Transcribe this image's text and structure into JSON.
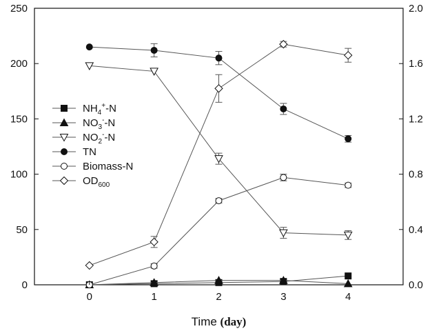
{
  "chart_data": {
    "type": "line",
    "x_axis": {
      "label_main": "Time ",
      "label_unit": "(day)",
      "range": [
        -0.85,
        4.85
      ],
      "ticks": [
        0,
        1,
        2,
        3,
        4
      ],
      "tick_labels": [
        "0",
        "1",
        "2",
        "3",
        "4"
      ]
    },
    "y_left": {
      "range": [
        0,
        250
      ],
      "ticks": [
        0,
        50,
        100,
        150,
        200,
        250
      ],
      "tick_labels": [
        "0",
        "50",
        "100",
        "150",
        "200",
        "250"
      ]
    },
    "y_right": {
      "range": [
        0,
        2.0
      ],
      "ticks": [
        0,
        0.4,
        0.8,
        1.2,
        1.6,
        2.0
      ],
      "tick_labels": [
        "0.0",
        "0.4",
        "0.8",
        "1.2",
        "1.6",
        "2.0"
      ]
    },
    "x": [
      0,
      1,
      2,
      3,
      4
    ],
    "series": [
      {
        "name": "NH4+-N",
        "label_parts": [
          "NH",
          "4",
          "+",
          "-N"
        ],
        "marker": "square",
        "filled": true,
        "axis": "left",
        "values": [
          0,
          1,
          2,
          3,
          8
        ],
        "errors": [
          0,
          0,
          0,
          0,
          0
        ]
      },
      {
        "name": "NO3--N",
        "label_parts": [
          "NO",
          "3",
          "-",
          "-N"
        ],
        "marker": "triangle-up",
        "filled": true,
        "axis": "left",
        "values": [
          0,
          2,
          4,
          4,
          1
        ],
        "errors": [
          0,
          0,
          0,
          0,
          0
        ]
      },
      {
        "name": "NO2--N",
        "label_parts": [
          "NO",
          "2",
          "-",
          "-N"
        ],
        "marker": "triangle-down",
        "filled": false,
        "axis": "left",
        "values": [
          198,
          193,
          114,
          47,
          45
        ],
        "errors": [
          0,
          0,
          5,
          5,
          4
        ]
      },
      {
        "name": "TN",
        "label_parts": [
          "TN",
          "",
          "",
          ""
        ],
        "marker": "circle",
        "filled": true,
        "axis": "left",
        "values": [
          215,
          212,
          205,
          159,
          132
        ],
        "errors": [
          0,
          6,
          6,
          5,
          3
        ]
      },
      {
        "name": "Biomass-N",
        "label_parts": [
          "Biomass-N",
          "",
          "",
          ""
        ],
        "marker": "circle",
        "filled": false,
        "axis": "left",
        "values": [
          0,
          17,
          76,
          97,
          90
        ],
        "errors": [
          0,
          2,
          2,
          3,
          2
        ]
      },
      {
        "name": "OD600",
        "label_parts": [
          "OD",
          "600",
          "",
          ""
        ],
        "marker": "diamond",
        "filled": false,
        "axis": "right",
        "values": [
          0.14,
          0.31,
          1.42,
          1.74,
          1.66
        ],
        "errors": [
          0,
          0.04,
          0.1,
          0.02,
          0.05
        ]
      }
    ],
    "grid": false,
    "legend_position": "left-middle",
    "colors": {
      "line": "#555555",
      "marker": "#111111",
      "axis": "#111111"
    }
  }
}
